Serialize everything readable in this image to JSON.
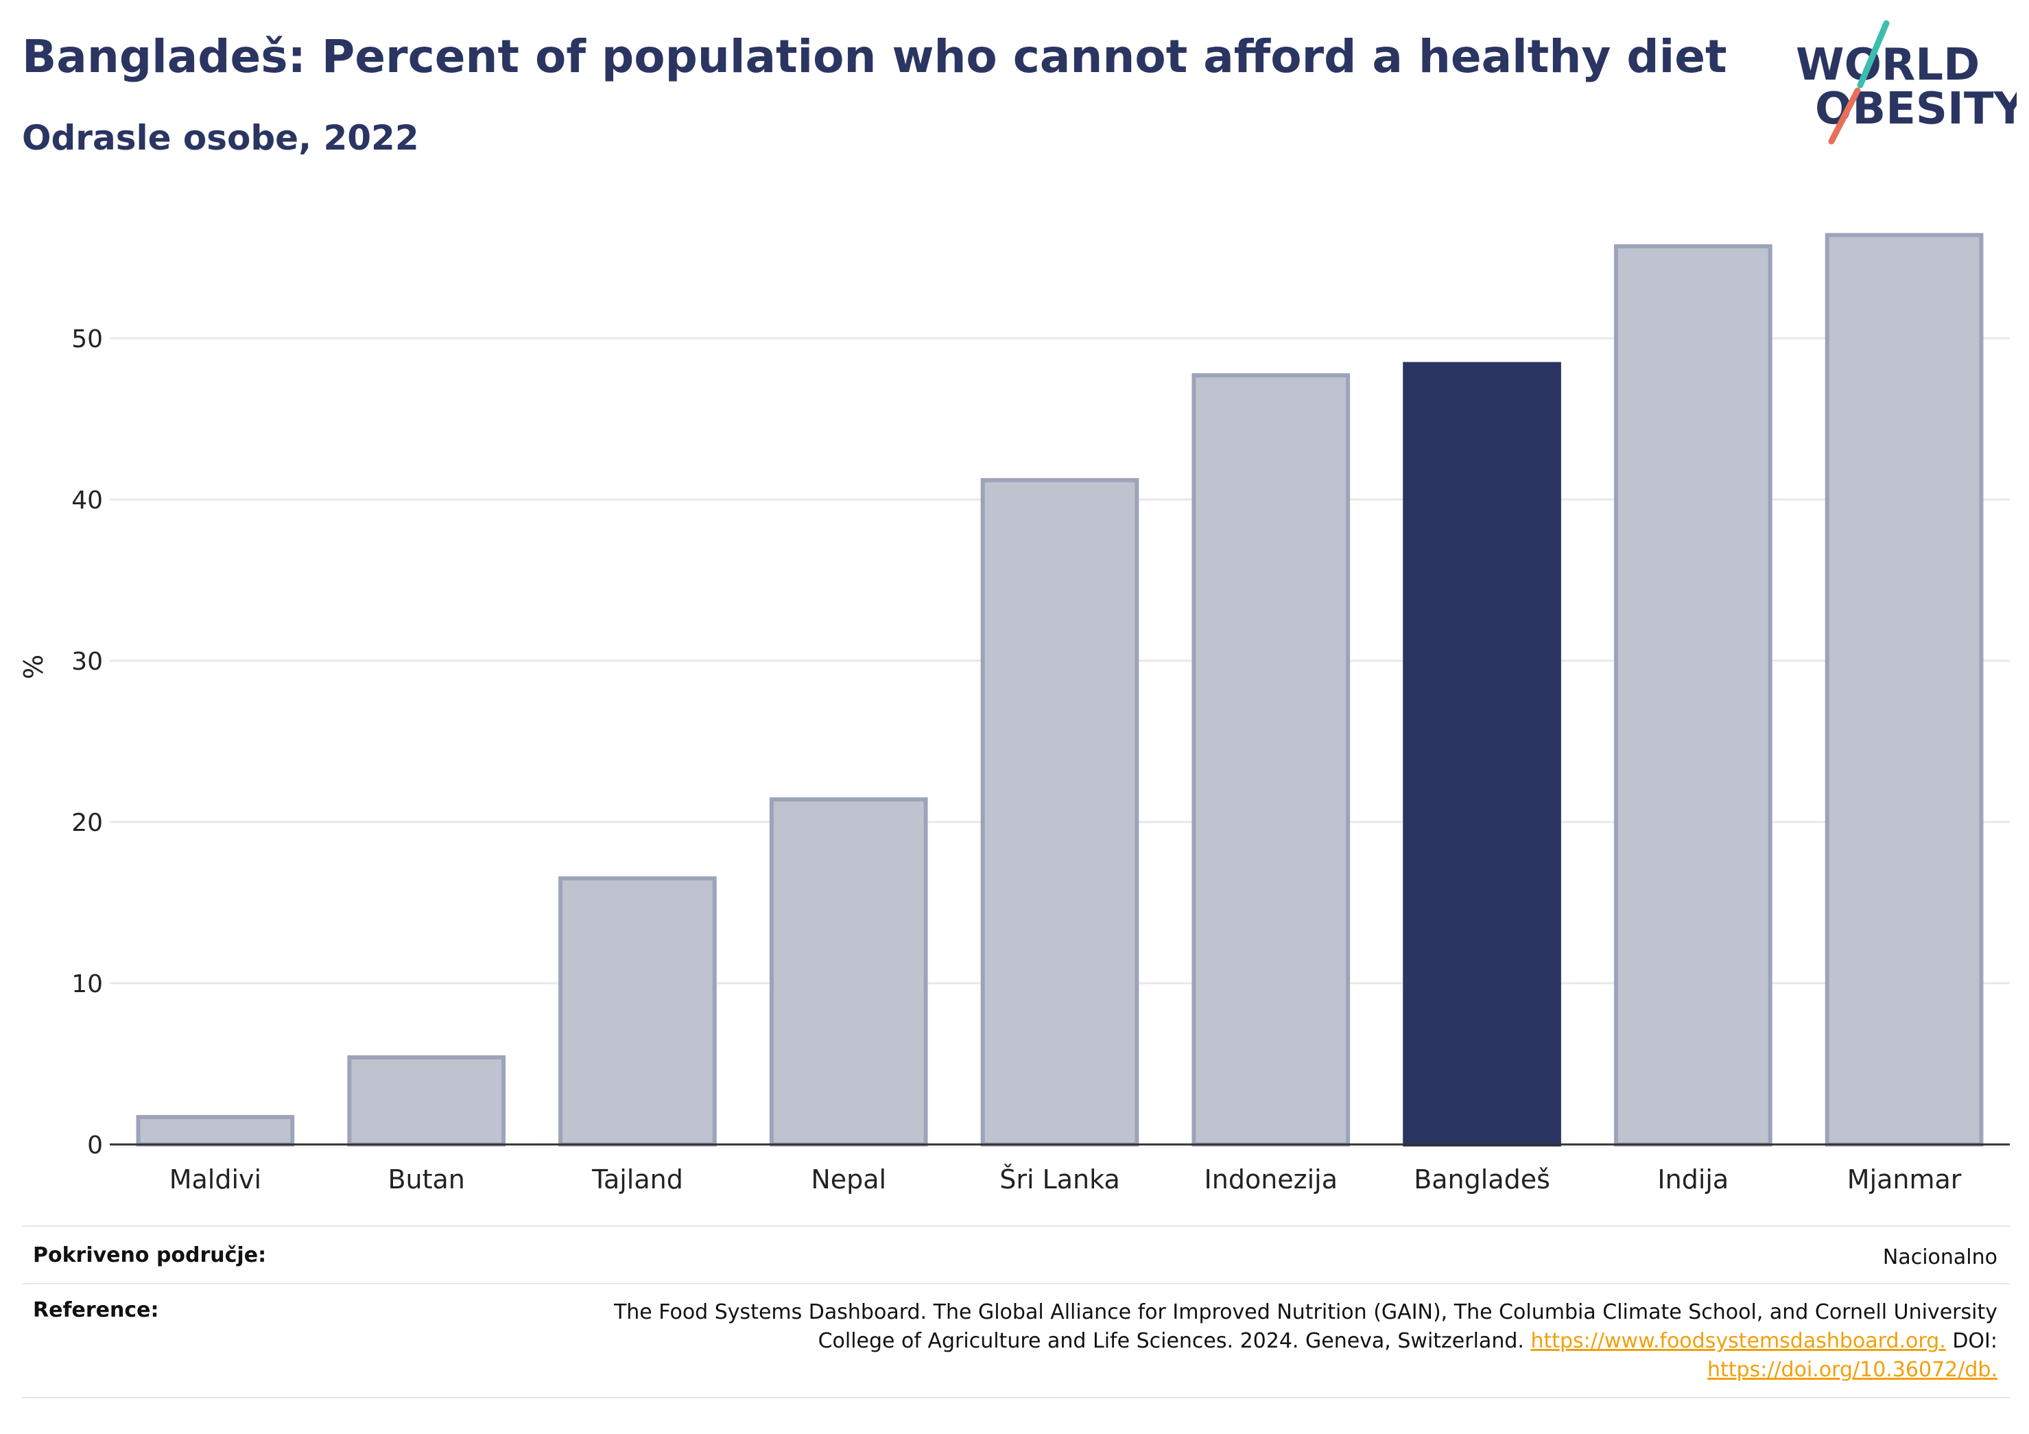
{
  "header": {
    "title": "Bangladeš: Percent of population who cannot afford a healthy diet",
    "subtitle": "Odrasle osobe, 2022"
  },
  "logo": {
    "line1": "WORLD",
    "line2": "OBESITY",
    "accent_teal": "#3dbdb0",
    "accent_coral": "#e8705a"
  },
  "chart_data": {
    "type": "bar",
    "title": "Bangladeš: Percent of population who cannot afford a healthy diet",
    "subtitle": "Odrasle osobe, 2022",
    "categories": [
      "Maldivi",
      "Butan",
      "Tajland",
      "Nepal",
      "Šri Lanka",
      "Indonezija",
      "Bangladeš",
      "Indija",
      "Mjanmar"
    ],
    "values": [
      1.7,
      5.4,
      16.5,
      21.4,
      41.2,
      47.7,
      48.4,
      55.7,
      56.4
    ],
    "highlight": "Bangladeš",
    "xlabel": "",
    "ylabel": "%",
    "ylim": [
      0,
      60
    ],
    "yticks": [
      0,
      10,
      20,
      30,
      40,
      50
    ],
    "grid": true,
    "colors": {
      "bar": "#bfc3cf",
      "bar_border": "#9da3b9",
      "highlight": "#2b3562",
      "grid": "#e6e8ee",
      "axis": "#333333"
    }
  },
  "footer": {
    "coverage_label": "Pokriveno područje:",
    "coverage_value": "Nacionalno",
    "reference_label": "Reference:",
    "reference_line1": "The Food Systems Dashboard. The Global Alliance for Improved Nutrition (GAIN), The Columbia Climate School, and Cornell University",
    "reference_line2_text": "College of Agriculture and Life Sciences. 2024. Geneva, Switzerland.",
    "reference_link1": "https://www.foodsystemsdashboard.org.",
    "reference_doi_label": "DOI:",
    "reference_link2": "https://doi.org/10.36072/db."
  }
}
